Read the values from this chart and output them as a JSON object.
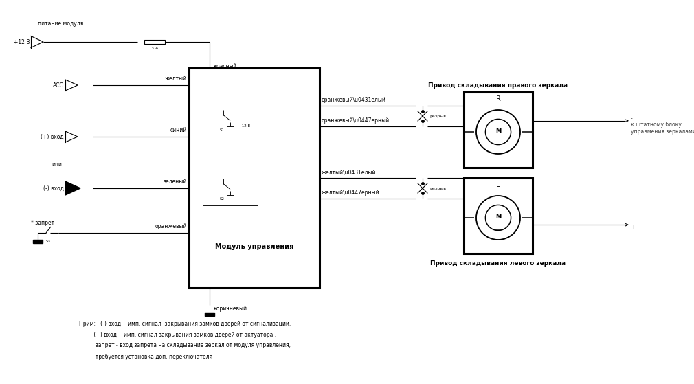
{
  "bg_color": "#ffffff",
  "line_color": "#000000",
  "gray_color": "#444444",
  "figsize": [
    10.1,
    5.59
  ],
  "dpi": 100,
  "title_right": "Привод складывания правого зеркала",
  "title_right2": "Привод складывания левого зеркала",
  "module_label": "Модуль управления",
  "power_label": "питание модуля",
  "plus12v": "+12 В",
  "fuse_label": "3 А",
  "red_wire": "красный",
  "brown_wire": "коричневый",
  "acc_label": "АСС",
  "yellow_wire": "желтый",
  "plus_vhod": "(+) вход",
  "blue_wire": "синий",
  "ili_label": "или",
  "minus_vhod": "(-) вход",
  "green_wire": "зеленый",
  "zapret_label": "* запрет",
  "orange_wire": "оранжевый",
  "ow_label": "оранжевый\\u0431елый",
  "och_label": "оранжевый\\u0447ерный",
  "zb_label": "желтый\\u0431елый",
  "zch_label": "желтый\\u0447ерный",
  "razryv": "разрыв",
  "s1_label": "S1",
  "s2_label": "S2",
  "s3_label": "S3",
  "plus12v_s1": "+12 В",
  "k_shtatu": "к штатному блоку",
  "upravleniya": "управмения зеркалами",
  "note1": "Прим: · (-) вход -  имп. сигнал  закрывания замков дверей от сигнализации.",
  "note2": "         (+) вход -  имп. сигнал закрывания замков дверей от актуатора .",
  "note3": "          запрет - вход запрета на складывание зеркал от модуля управления,",
  "note4": "          требуется установка доп. переключателя"
}
